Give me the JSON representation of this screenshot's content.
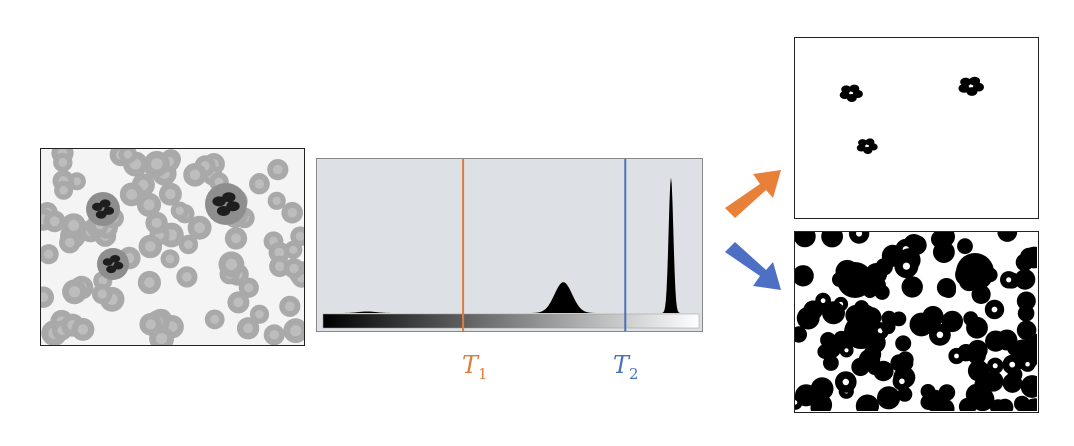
{
  "colors": {
    "t1": "#e07b39",
    "t2": "#4a72b8",
    "arrow_up": "#e8803a",
    "arrow_down": "#4d6fc4",
    "hist_bg": "#dde1e5"
  },
  "histogram": {
    "x_range": [
      0,
      255
    ],
    "peaks": [
      {
        "center": 30,
        "height": 0.01,
        "width": 6
      },
      {
        "center": 163,
        "height": 0.2,
        "width": 6
      },
      {
        "center": 236,
        "height": 0.88,
        "width": 1.6
      }
    ]
  },
  "thresholds": [
    {
      "id": "t1",
      "symbol": "T",
      "subscript": "1",
      "value": 95
    },
    {
      "id": "t2",
      "symbol": "T",
      "subscript": "2",
      "value": 205
    }
  ],
  "icons": {
    "arrow_up": "arrow-up-right-icon",
    "arrow_down": "arrow-down-right-icon"
  }
}
